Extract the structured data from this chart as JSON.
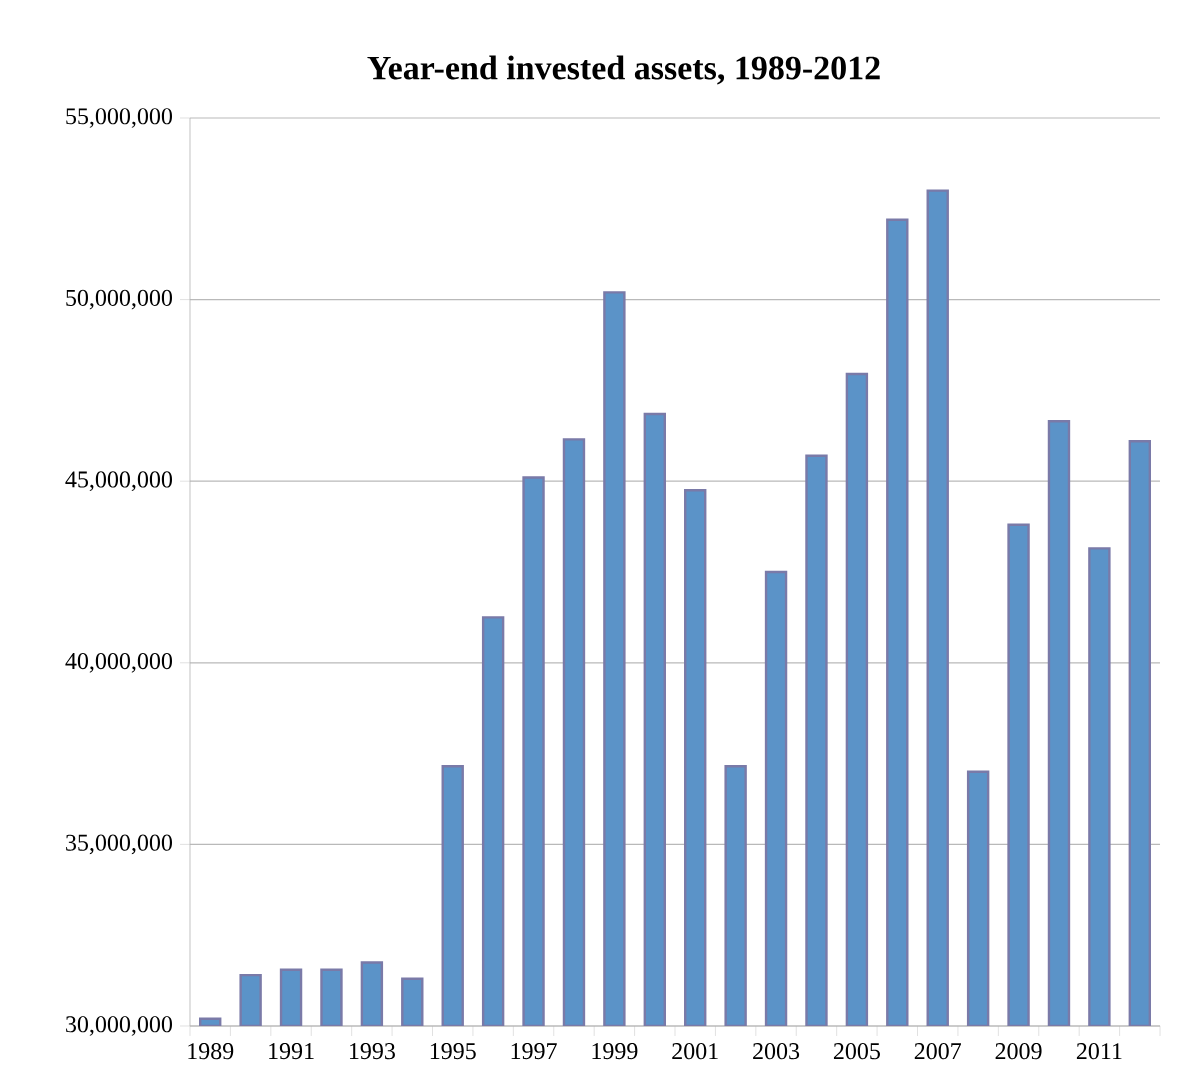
{
  "chart_data": {
    "type": "bar",
    "title": "Year-end invested assets, 1989-2012",
    "categories": [
      "1989",
      null,
      "1991",
      null,
      "1993",
      null,
      "1995",
      null,
      "1997",
      null,
      "1999",
      null,
      "2001",
      null,
      "2003",
      null,
      "2005",
      null,
      "2007",
      null,
      "2009",
      null,
      "2011",
      null
    ],
    "values": [
      30200000,
      31400000,
      31550000,
      31550000,
      31750000,
      31300000,
      37150000,
      41250000,
      45100000,
      46150000,
      50200000,
      46850000,
      44750000,
      37150000,
      42500000,
      45700000,
      47950000,
      52200000,
      53000000,
      37000000,
      43800000,
      46650000,
      43150000,
      46100000
    ],
    "color": "#5b93c8",
    "ylim": [
      30000000,
      55000000
    ],
    "yticks": [
      {
        "value": 30000000,
        "label": "30,000,000"
      },
      {
        "value": 35000000,
        "label": "35,000,000"
      },
      {
        "value": 40000000,
        "label": "40,000,000"
      },
      {
        "value": 45000000,
        "label": "45,000,000"
      },
      {
        "value": 50000000,
        "label": "50,000,000"
      },
      {
        "value": 55000000,
        "label": "55,000,000"
      }
    ],
    "grid": "y"
  }
}
